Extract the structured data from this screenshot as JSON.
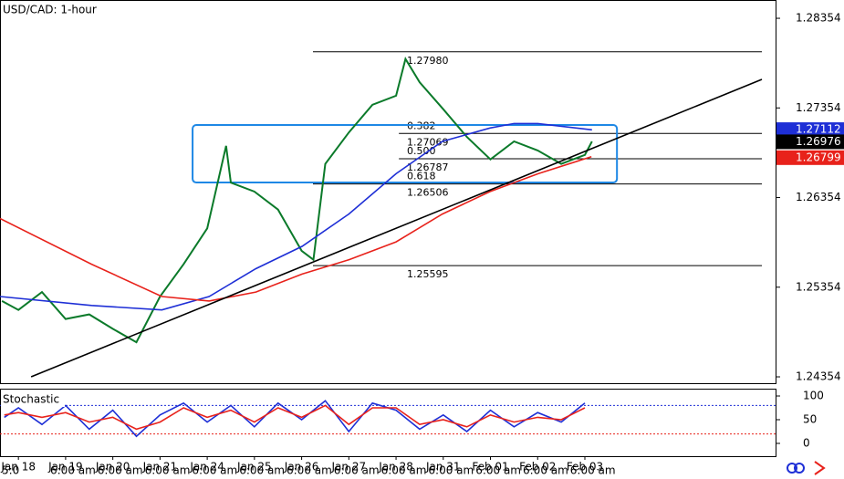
{
  "chart_data": [
    {
      "type": "line",
      "title": "USD/CAD: 1-hour",
      "xlim": [
        -0.39,
        16.04
      ],
      "ylim": [
        1.24283,
        1.28558
      ],
      "yticks": [
        {
          "value": 1.28354,
          "label": "1.28354"
        },
        {
          "value": 1.27354,
          "label": "1.27354"
        },
        {
          "value": 1.26354,
          "label": "1.26354"
        },
        {
          "value": 1.25354,
          "label": "1.25354"
        },
        {
          "value": 1.24354,
          "label": "1.24354"
        }
      ],
      "series": [
        {
          "color": "#0b7a2a",
          "x": [
            -0.35,
            0,
            0.5,
            1,
            1.5,
            2,
            2.5,
            3,
            3.5,
            4,
            4.4,
            4.5,
            5,
            5.5,
            6,
            6.25,
            6.5,
            7,
            7.5,
            8,
            8.2,
            8.5,
            9,
            9.5,
            10,
            10.5,
            11,
            11.5,
            12,
            12.15
          ],
          "values": [
            1.252,
            1.251,
            1.253,
            1.25,
            1.2505,
            1.2489,
            1.2474,
            1.2525,
            1.2561,
            1.2601,
            1.2693,
            1.2652,
            1.2642,
            1.2622,
            1.2576,
            1.2566,
            1.2673,
            1.2708,
            1.2739,
            1.2749,
            1.279,
            1.2764,
            1.2734,
            1.2703,
            1.2678,
            1.2698,
            1.2688,
            1.2673,
            1.2683,
            1.2698
          ]
        },
        {
          "color": "#1e2fd6",
          "x": [
            -0.39,
            1.55,
            3.04,
            4.04,
            5.03,
            6.01,
            7,
            8,
            8.98,
            9.99,
            10.5,
            11,
            12.15
          ],
          "values": [
            1.2525,
            1.2515,
            1.251,
            1.2525,
            1.2556,
            1.2581,
            1.2617,
            1.2662,
            1.2698,
            1.2713,
            1.2718,
            1.2718,
            1.2711
          ]
        },
        {
          "color": "#e8221b",
          "x": [
            -0.39,
            1.55,
            3.04,
            4.04,
            5.03,
            6.01,
            7,
            8,
            8.98,
            9.99,
            11.01,
            12.14
          ],
          "values": [
            1.2612,
            1.2561,
            1.2525,
            1.252,
            1.253,
            1.255,
            1.2566,
            1.2586,
            1.2617,
            1.2642,
            1.2662,
            1.2681
          ]
        },
        {
          "color": "#000000",
          "x": [
            0.27,
            15.75
          ],
          "values": [
            1.24354,
            1.27672
          ]
        }
      ],
      "fib_levels": [
        {
          "value": 1.2798,
          "label": "1.27980",
          "x": [
            6.24,
            15.75
          ]
        },
        {
          "value": 1.27069,
          "label": "1.27069",
          "ratio": "0.382",
          "x": [
            8.06,
            15.75
          ]
        },
        {
          "value": 1.26787,
          "label": "1.26787",
          "ratio": "0.500",
          "x": [
            8.06,
            15.75
          ]
        },
        {
          "value": 1.26506,
          "label": "1.26506",
          "ratio": "0.618",
          "x": [
            6.24,
            15.75
          ]
        },
        {
          "value": 1.25595,
          "label": "1.25595",
          "x": [
            6.24,
            15.75
          ]
        }
      ],
      "box": {
        "color": "#1e88e5",
        "x": [
          3.69,
          12.68
        ],
        "y": [
          1.26522,
          1.27163
        ]
      },
      "last_values": [
        {
          "value": 1.27112,
          "label": "1.27112",
          "color": "#1e2fd6"
        },
        {
          "value": 1.26976,
          "label": "1.26976",
          "color": "#000000"
        },
        {
          "value": 1.26799,
          "label": "1.26799",
          "color": "#e8221b"
        }
      ]
    },
    {
      "type": "line",
      "title": "Stochastic",
      "xlim": [
        -0.39,
        16.04
      ],
      "ylim": [
        -27,
        113.5
      ],
      "yticks": [
        100,
        50,
        0
      ],
      "levels": [
        {
          "value": 80,
          "color": "#1e2fd6"
        },
        {
          "value": 20,
          "color": "#e8221b"
        }
      ],
      "xticks": [
        {
          "value": 0,
          "label": "Jan 18"
        },
        {
          "value": 1,
          "label": "Jan 19"
        },
        {
          "value": 2,
          "label": "Jan 20"
        },
        {
          "value": 3,
          "label": "Jan 21"
        },
        {
          "value": 4,
          "label": "Jan 24"
        },
        {
          "value": 5,
          "label": "Jan 25"
        },
        {
          "value": 6,
          "label": "Jan 26"
        },
        {
          "value": 7,
          "label": "Jan 27"
        },
        {
          "value": 8,
          "label": "Jan 28"
        },
        {
          "value": 9,
          "label": "Jan 31"
        },
        {
          "value": 10,
          "label": "Feb 01"
        },
        {
          "value": 11,
          "label": "Feb 02"
        },
        {
          "value": 12,
          "label": "Feb 03"
        }
      ],
      "time_labels": [
        "5:0",
        "6:00 am",
        "6:00 am",
        "6:00 am",
        "6:00 am",
        "6:00 am",
        "6:00 am",
        "6:00 am",
        "6:00 am",
        "6:00 am",
        "6:00 am",
        "6:00 am",
        "6:00 am"
      ],
      "series": [
        {
          "color": "#1e2fd6",
          "x": [
            -0.3,
            0,
            0.5,
            1,
            1.5,
            2,
            2.5,
            3,
            3.5,
            4,
            4.5,
            5,
            5.5,
            6,
            6.5,
            7,
            7.5,
            8,
            8.5,
            9,
            9.5,
            10,
            10.5,
            11,
            11.5,
            12
          ],
          "values": [
            55,
            75,
            40,
            80,
            30,
            70,
            15,
            60,
            85,
            45,
            80,
            35,
            85,
            50,
            90,
            25,
            85,
            70,
            30,
            60,
            25,
            70,
            35,
            65,
            45,
            85
          ]
        },
        {
          "color": "#e8221b",
          "x": [
            -0.3,
            0,
            0.5,
            1,
            1.5,
            2,
            2.5,
            3,
            3.5,
            4,
            4.5,
            5,
            5.5,
            6,
            6.5,
            7,
            7.5,
            8,
            8.5,
            9,
            9.5,
            10,
            10.5,
            11,
            11.5,
            12
          ],
          "values": [
            60,
            65,
            55,
            65,
            45,
            55,
            30,
            45,
            75,
            55,
            70,
            45,
            75,
            55,
            80,
            40,
            75,
            75,
            40,
            50,
            35,
            60,
            45,
            55,
            50,
            75
          ]
        }
      ]
    }
  ]
}
